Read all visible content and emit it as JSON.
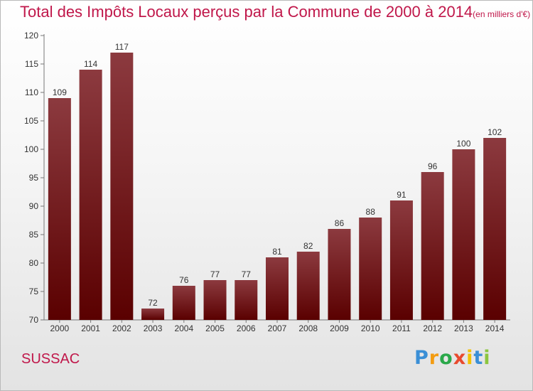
{
  "title": "Total des Impôts Locaux perçus par la Commune de 2000 à 2014",
  "unit": "(en milliers d'€)",
  "commune": "SUSSAC",
  "logo": {
    "text": "Proxiti",
    "letters": [
      "P",
      "r",
      "o",
      "x",
      "i",
      "t",
      "i"
    ],
    "colors": [
      "#3a8fd6",
      "#f39c12",
      "#2aa84a",
      "#e84a2e",
      "#f2c200",
      "#3a8fd6",
      "#8cc63f"
    ]
  },
  "colors": {
    "title": "#c0174a",
    "bar_top": "#8c3a3f",
    "bar_bottom": "#5a0000"
  },
  "chart_data": {
    "type": "bar",
    "categories": [
      "2000",
      "2001",
      "2002",
      "2003",
      "2004",
      "2005",
      "2006",
      "2007",
      "2008",
      "2009",
      "2010",
      "2011",
      "2012",
      "2013",
      "2014"
    ],
    "values": [
      109,
      114,
      117,
      72,
      76,
      77,
      77,
      81,
      82,
      86,
      88,
      91,
      96,
      100,
      102
    ],
    "ylim": [
      70,
      120
    ],
    "yticks": [
      70,
      75,
      80,
      85,
      90,
      95,
      100,
      105,
      110,
      115,
      120
    ],
    "grid": false,
    "data_labels": true
  }
}
